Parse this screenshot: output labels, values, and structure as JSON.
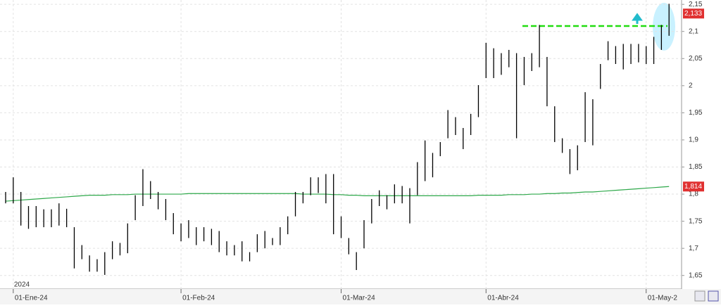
{
  "chart_data": {
    "type": "hl",
    "year_label": "2024",
    "categories": [
      null,
      "01-Ene-24",
      null,
      null,
      null,
      null,
      null,
      null,
      null,
      null,
      null,
      null,
      null,
      null,
      null,
      null,
      null,
      null,
      null,
      null,
      null,
      null,
      null,
      "01-Feb-24",
      null,
      null,
      null,
      null,
      null,
      null,
      null,
      null,
      null,
      null,
      null,
      null,
      null,
      null,
      null,
      null,
      null,
      null,
      null,
      null,
      "01-Mar-24",
      null,
      null,
      null,
      null,
      null,
      null,
      null,
      null,
      null,
      null,
      null,
      null,
      null,
      null,
      null,
      null,
      null,
      null,
      "01-Abr-24",
      null,
      null,
      null,
      null,
      null,
      null,
      null,
      null,
      null,
      null,
      null,
      null,
      null,
      null,
      null,
      null,
      null,
      null,
      null,
      null,
      "01-May-2",
      null,
      null,
      null
    ],
    "high": [
      1.804,
      1.831,
      1.804,
      1.778,
      1.778,
      1.772,
      1.772,
      1.783,
      1.773,
      1.739,
      1.706,
      1.687,
      1.68,
      1.693,
      1.713,
      1.71,
      1.746,
      1.798,
      1.846,
      1.824,
      1.804,
      1.791,
      1.765,
      1.746,
      1.752,
      1.739,
      1.739,
      1.736,
      1.732,
      1.713,
      1.706,
      1.713,
      1.693,
      1.726,
      1.732,
      1.719,
      1.739,
      1.759,
      1.804,
      1.804,
      1.831,
      1.831,
      1.837,
      1.837,
      1.759,
      1.719,
      1.693,
      1.752,
      1.791,
      1.807,
      1.798,
      1.818,
      1.815,
      1.811,
      1.859,
      1.899,
      1.876,
      1.896,
      1.955,
      1.942,
      1.922,
      1.948,
      2.001,
      2.079,
      2.069,
      2.06,
      2.066,
      2.06,
      2.053,
      2.06,
      2.112,
      2.053,
      1.962,
      1.903,
      1.883,
      1.89,
      1.988,
      1.975,
      2.04,
      2.082,
      2.073,
      2.077,
      2.077,
      2.077,
      2.073,
      2.09,
      2.112,
      2.151
    ],
    "low": [
      1.783,
      1.783,
      1.742,
      1.736,
      1.739,
      1.739,
      1.739,
      1.742,
      1.739,
      1.663,
      1.68,
      1.657,
      1.657,
      1.651,
      1.68,
      1.687,
      1.691,
      1.752,
      1.778,
      1.791,
      1.772,
      1.752,
      1.726,
      1.713,
      1.719,
      1.706,
      1.713,
      1.706,
      1.693,
      1.687,
      1.687,
      1.676,
      1.676,
      1.693,
      1.7,
      1.706,
      1.706,
      1.726,
      1.759,
      1.783,
      1.798,
      1.802,
      1.783,
      1.726,
      1.719,
      1.689,
      1.66,
      1.7,
      1.746,
      1.778,
      1.772,
      1.783,
      1.783,
      1.746,
      1.798,
      1.824,
      1.831,
      1.87,
      1.903,
      1.909,
      1.883,
      1.909,
      1.942,
      2.014,
      2.014,
      2.02,
      2.034,
      1.903,
      2.001,
      2.027,
      2.034,
      1.962,
      1.896,
      1.876,
      1.837,
      1.844,
      1.896,
      1.89,
      1.994,
      2.047,
      2.04,
      2.03,
      2.04,
      2.043,
      2.04,
      2.04,
      2.066,
      2.092
    ],
    "color": "#000000",
    "ma_values": [
      1.787,
      1.788,
      1.789,
      1.79,
      1.791,
      1.792,
      1.793,
      1.794,
      1.795,
      1.796,
      1.797,
      1.798,
      1.798,
      1.798,
      1.799,
      1.799,
      1.799,
      1.8,
      1.8,
      1.8,
      1.8,
      1.8,
      1.8,
      1.8,
      1.801,
      1.801,
      1.801,
      1.801,
      1.801,
      1.801,
      1.801,
      1.801,
      1.801,
      1.801,
      1.801,
      1.801,
      1.801,
      1.801,
      1.801,
      1.8,
      1.8,
      1.8,
      1.8,
      1.799,
      1.799,
      1.798,
      1.798,
      1.797,
      1.797,
      1.797,
      1.797,
      1.797,
      1.797,
      1.797,
      1.797,
      1.797,
      1.797,
      1.797,
      1.797,
      1.797,
      1.797,
      1.797,
      1.798,
      1.798,
      1.798,
      1.798,
      1.799,
      1.799,
      1.799,
      1.8,
      1.8,
      1.801,
      1.801,
      1.802,
      1.802,
      1.803,
      1.804,
      1.804,
      1.805,
      1.806,
      1.807,
      1.808,
      1.809,
      1.81,
      1.811,
      1.812,
      1.813,
      1.814
    ],
    "ma_color": "#2ea84a",
    "ma_last": 1.814,
    "ma_last_label": "1,814",
    "last_price": 2.133,
    "last_price_label": "2,133",
    "resistance": 2.11,
    "resistance_color": "#22dd11",
    "ylim": [
      1.625,
      2.158
    ],
    "yticks": [
      {
        "value": 1.65,
        "label": "1,65"
      },
      {
        "value": 1.7,
        "label": "1,7"
      },
      {
        "value": 1.75,
        "label": "1,75"
      },
      {
        "value": 1.8,
        "label": "1,8"
      },
      {
        "value": 1.85,
        "label": "1,85"
      },
      {
        "value": 1.9,
        "label": "1,9"
      },
      {
        "value": 1.95,
        "label": "1,95"
      },
      {
        "value": 2,
        "label": "2"
      },
      {
        "value": 2.05,
        "label": "2,05"
      },
      {
        "value": 2.1,
        "label": "2,1"
      },
      {
        "value": 2.15,
        "label": "2,15"
      }
    ],
    "grid": true
  }
}
